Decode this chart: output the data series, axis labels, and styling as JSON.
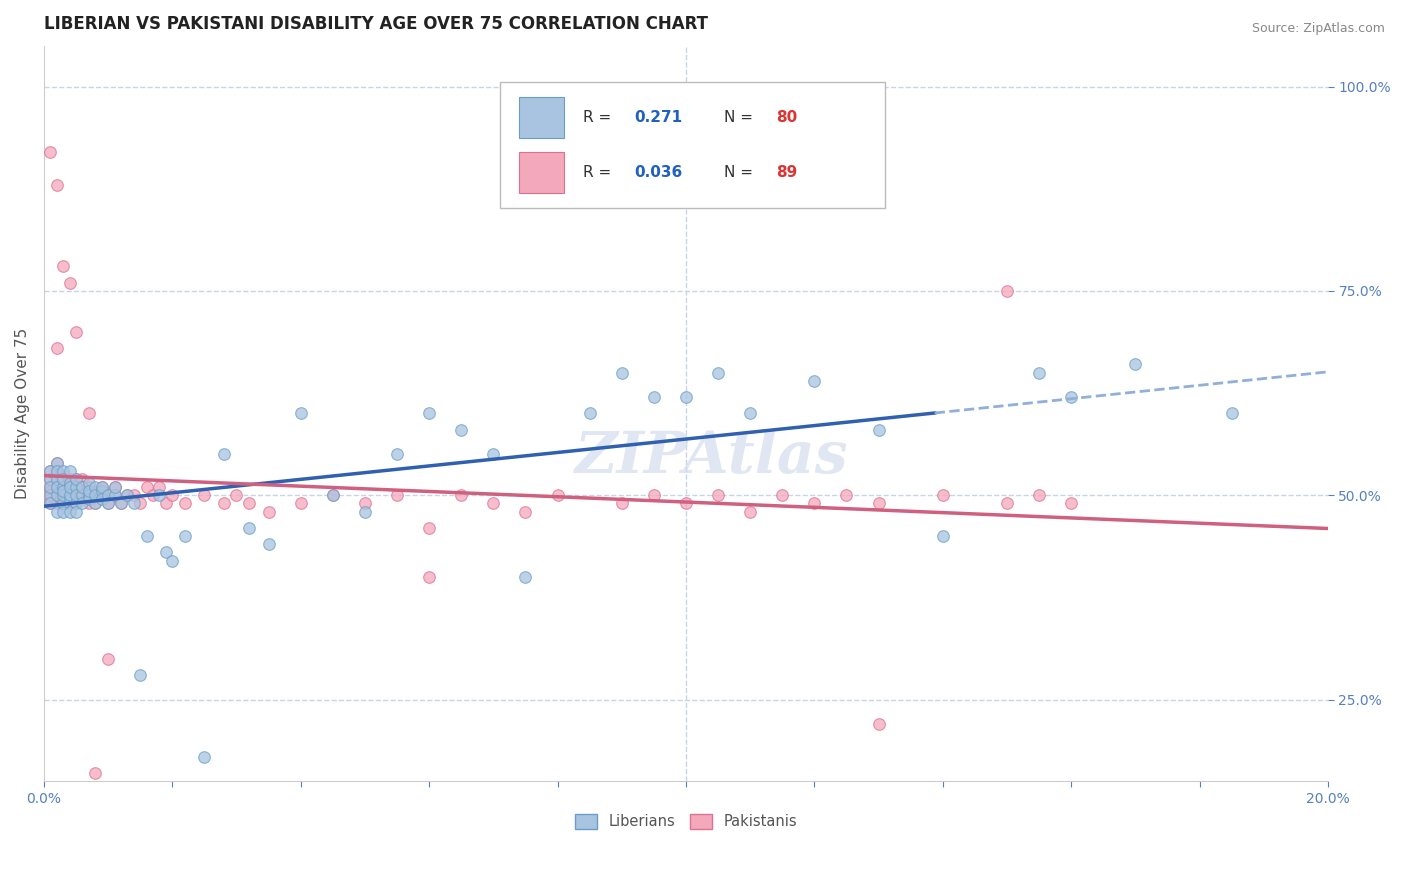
{
  "title": "LIBERIAN VS PAKISTANI DISABILITY AGE OVER 75 CORRELATION CHART",
  "source_text": "Source: ZipAtlas.com",
  "ylabel": "Disability Age Over 75",
  "xlim": [
    0.0,
    0.2
  ],
  "ylim": [
    0.15,
    1.05
  ],
  "xticks": [
    0.0,
    0.02,
    0.04,
    0.06,
    0.08,
    0.1,
    0.12,
    0.14,
    0.16,
    0.18,
    0.2
  ],
  "yticks": [
    0.25,
    0.5,
    0.75,
    1.0
  ],
  "yticklabels": [
    "25.0%",
    "50.0%",
    "75.0%",
    "100.0%"
  ],
  "liberian_R": 0.271,
  "liberian_N": 80,
  "pakistani_R": 0.036,
  "pakistani_N": 89,
  "liberian_color": "#a8c4e0",
  "liberian_edge_color": "#6a9ec8",
  "pakistani_color": "#f4a8bc",
  "pakistani_edge_color": "#e07090",
  "liberian_line_color": "#3060b0",
  "liberian_dash_color": "#90b0d8",
  "pakistani_line_color": "#d06080",
  "background_color": "#ffffff",
  "grid_color": "#c8d4e8",
  "watermark_color": "#ccd8ec",
  "title_color": "#222222",
  "source_color": "#888888",
  "tick_color": "#5580c0",
  "ylabel_color": "#555555",
  "legend_border_color": "#bbbbbb",
  "legend_R_color": "#2060c0",
  "legend_N_color": "#dd3333",
  "title_fontsize": 12,
  "axis_fontsize": 11,
  "tick_fontsize": 10,
  "liberian_x": [
    0.001,
    0.001,
    0.001,
    0.001,
    0.001,
    0.002,
    0.002,
    0.002,
    0.002,
    0.002,
    0.002,
    0.003,
    0.003,
    0.003,
    0.003,
    0.003,
    0.003,
    0.003,
    0.004,
    0.004,
    0.004,
    0.004,
    0.004,
    0.004,
    0.005,
    0.005,
    0.005,
    0.005,
    0.005,
    0.006,
    0.006,
    0.006,
    0.007,
    0.007,
    0.007,
    0.007,
    0.008,
    0.008,
    0.008,
    0.009,
    0.009,
    0.009,
    0.01,
    0.01,
    0.011,
    0.011,
    0.012,
    0.013,
    0.014,
    0.015,
    0.016,
    0.018,
    0.019,
    0.02,
    0.022,
    0.025,
    0.028,
    0.032,
    0.035,
    0.04,
    0.045,
    0.05,
    0.055,
    0.06,
    0.065,
    0.07,
    0.075,
    0.085,
    0.09,
    0.095,
    0.1,
    0.105,
    0.11,
    0.12,
    0.13,
    0.14,
    0.155,
    0.16,
    0.17,
    0.185
  ],
  "liberian_y": [
    0.5,
    0.52,
    0.51,
    0.49,
    0.53,
    0.5,
    0.52,
    0.54,
    0.48,
    0.51,
    0.53,
    0.49,
    0.51,
    0.53,
    0.5,
    0.48,
    0.52,
    0.505,
    0.495,
    0.515,
    0.5,
    0.48,
    0.53,
    0.51,
    0.49,
    0.51,
    0.5,
    0.52,
    0.48,
    0.5,
    0.51,
    0.49,
    0.5,
    0.515,
    0.495,
    0.505,
    0.49,
    0.51,
    0.5,
    0.505,
    0.495,
    0.51,
    0.5,
    0.49,
    0.5,
    0.51,
    0.49,
    0.5,
    0.49,
    0.28,
    0.45,
    0.5,
    0.43,
    0.42,
    0.45,
    0.18,
    0.55,
    0.46,
    0.44,
    0.6,
    0.5,
    0.48,
    0.55,
    0.6,
    0.58,
    0.55,
    0.4,
    0.6,
    0.65,
    0.62,
    0.62,
    0.65,
    0.6,
    0.64,
    0.58,
    0.45,
    0.65,
    0.62,
    0.66,
    0.6
  ],
  "pakistani_x": [
    0.001,
    0.001,
    0.001,
    0.001,
    0.001,
    0.001,
    0.002,
    0.002,
    0.002,
    0.002,
    0.002,
    0.002,
    0.003,
    0.003,
    0.003,
    0.003,
    0.003,
    0.004,
    0.004,
    0.004,
    0.004,
    0.004,
    0.005,
    0.005,
    0.005,
    0.005,
    0.006,
    0.006,
    0.006,
    0.007,
    0.007,
    0.007,
    0.008,
    0.008,
    0.009,
    0.009,
    0.01,
    0.01,
    0.011,
    0.011,
    0.012,
    0.013,
    0.014,
    0.015,
    0.016,
    0.017,
    0.018,
    0.019,
    0.02,
    0.022,
    0.025,
    0.028,
    0.03,
    0.032,
    0.035,
    0.04,
    0.045,
    0.05,
    0.055,
    0.06,
    0.065,
    0.07,
    0.075,
    0.08,
    0.09,
    0.095,
    0.1,
    0.105,
    0.11,
    0.115,
    0.12,
    0.125,
    0.13,
    0.14,
    0.15,
    0.155,
    0.16,
    0.002,
    0.06,
    0.13,
    0.15,
    0.01,
    0.005,
    0.003,
    0.007,
    0.008,
    0.004,
    0.002,
    0.001
  ],
  "pakistani_y": [
    0.51,
    0.52,
    0.49,
    0.53,
    0.505,
    0.495,
    0.52,
    0.51,
    0.54,
    0.49,
    0.5,
    0.53,
    0.51,
    0.49,
    0.52,
    0.505,
    0.495,
    0.51,
    0.5,
    0.52,
    0.49,
    0.51,
    0.5,
    0.52,
    0.49,
    0.51,
    0.5,
    0.52,
    0.51,
    0.5,
    0.49,
    0.51,
    0.5,
    0.49,
    0.51,
    0.5,
    0.5,
    0.49,
    0.51,
    0.5,
    0.49,
    0.5,
    0.5,
    0.49,
    0.51,
    0.5,
    0.51,
    0.49,
    0.5,
    0.49,
    0.5,
    0.49,
    0.5,
    0.49,
    0.48,
    0.49,
    0.5,
    0.49,
    0.5,
    0.46,
    0.5,
    0.49,
    0.48,
    0.5,
    0.49,
    0.5,
    0.49,
    0.5,
    0.48,
    0.5,
    0.49,
    0.5,
    0.49,
    0.5,
    0.49,
    0.5,
    0.49,
    0.88,
    0.4,
    0.22,
    0.75,
    0.3,
    0.7,
    0.78,
    0.6,
    0.16,
    0.76,
    0.68,
    0.92
  ]
}
